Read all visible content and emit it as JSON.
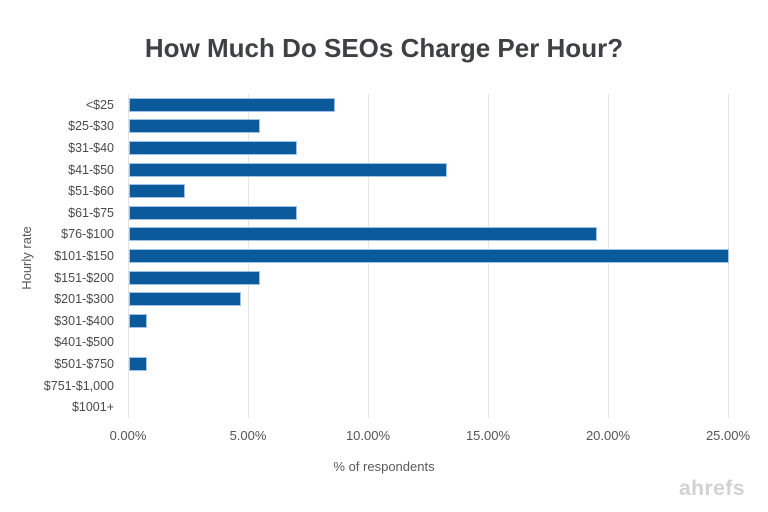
{
  "title": "How Much Do SEOs Charge Per Hour?",
  "watermark": "ahrefs",
  "chart_data": {
    "type": "bar",
    "orientation": "horizontal",
    "title": "How Much Do SEOs Charge Per Hour?",
    "xlabel": "% of respondents",
    "ylabel": "Hourly rate",
    "categories": [
      "<$25",
      "$25-$30",
      "$31-$40",
      "$41-$50",
      "$51-$60",
      "$61-$75",
      "$76-$100",
      "$101-$150",
      "$151-$200",
      "$201-$300",
      "$301-$400",
      "$401-$500",
      "$501-$750",
      "$751-$1,000",
      "$1001+"
    ],
    "values": [
      8.59,
      5.47,
      7.03,
      13.28,
      2.34,
      7.03,
      19.53,
      25.0,
      5.47,
      4.69,
      0.78,
      0,
      0.78,
      0,
      0
    ],
    "x_ticks": [
      "0.00%",
      "5.00%",
      "10.00%",
      "15.00%",
      "20.00%",
      "25.00%"
    ],
    "x_tick_values": [
      0,
      5,
      10,
      15,
      20,
      25
    ],
    "xlim": [
      0,
      25
    ],
    "grid": "vertical",
    "legend": "none",
    "bar_color": "#0b5a9c",
    "bar_border_color": "#9fc3e6",
    "grid_color": "#e3e3e3",
    "title_color": "#3f4043",
    "axis_text_color": "#4a4a4a",
    "watermark_color": "#d2d2d2"
  }
}
